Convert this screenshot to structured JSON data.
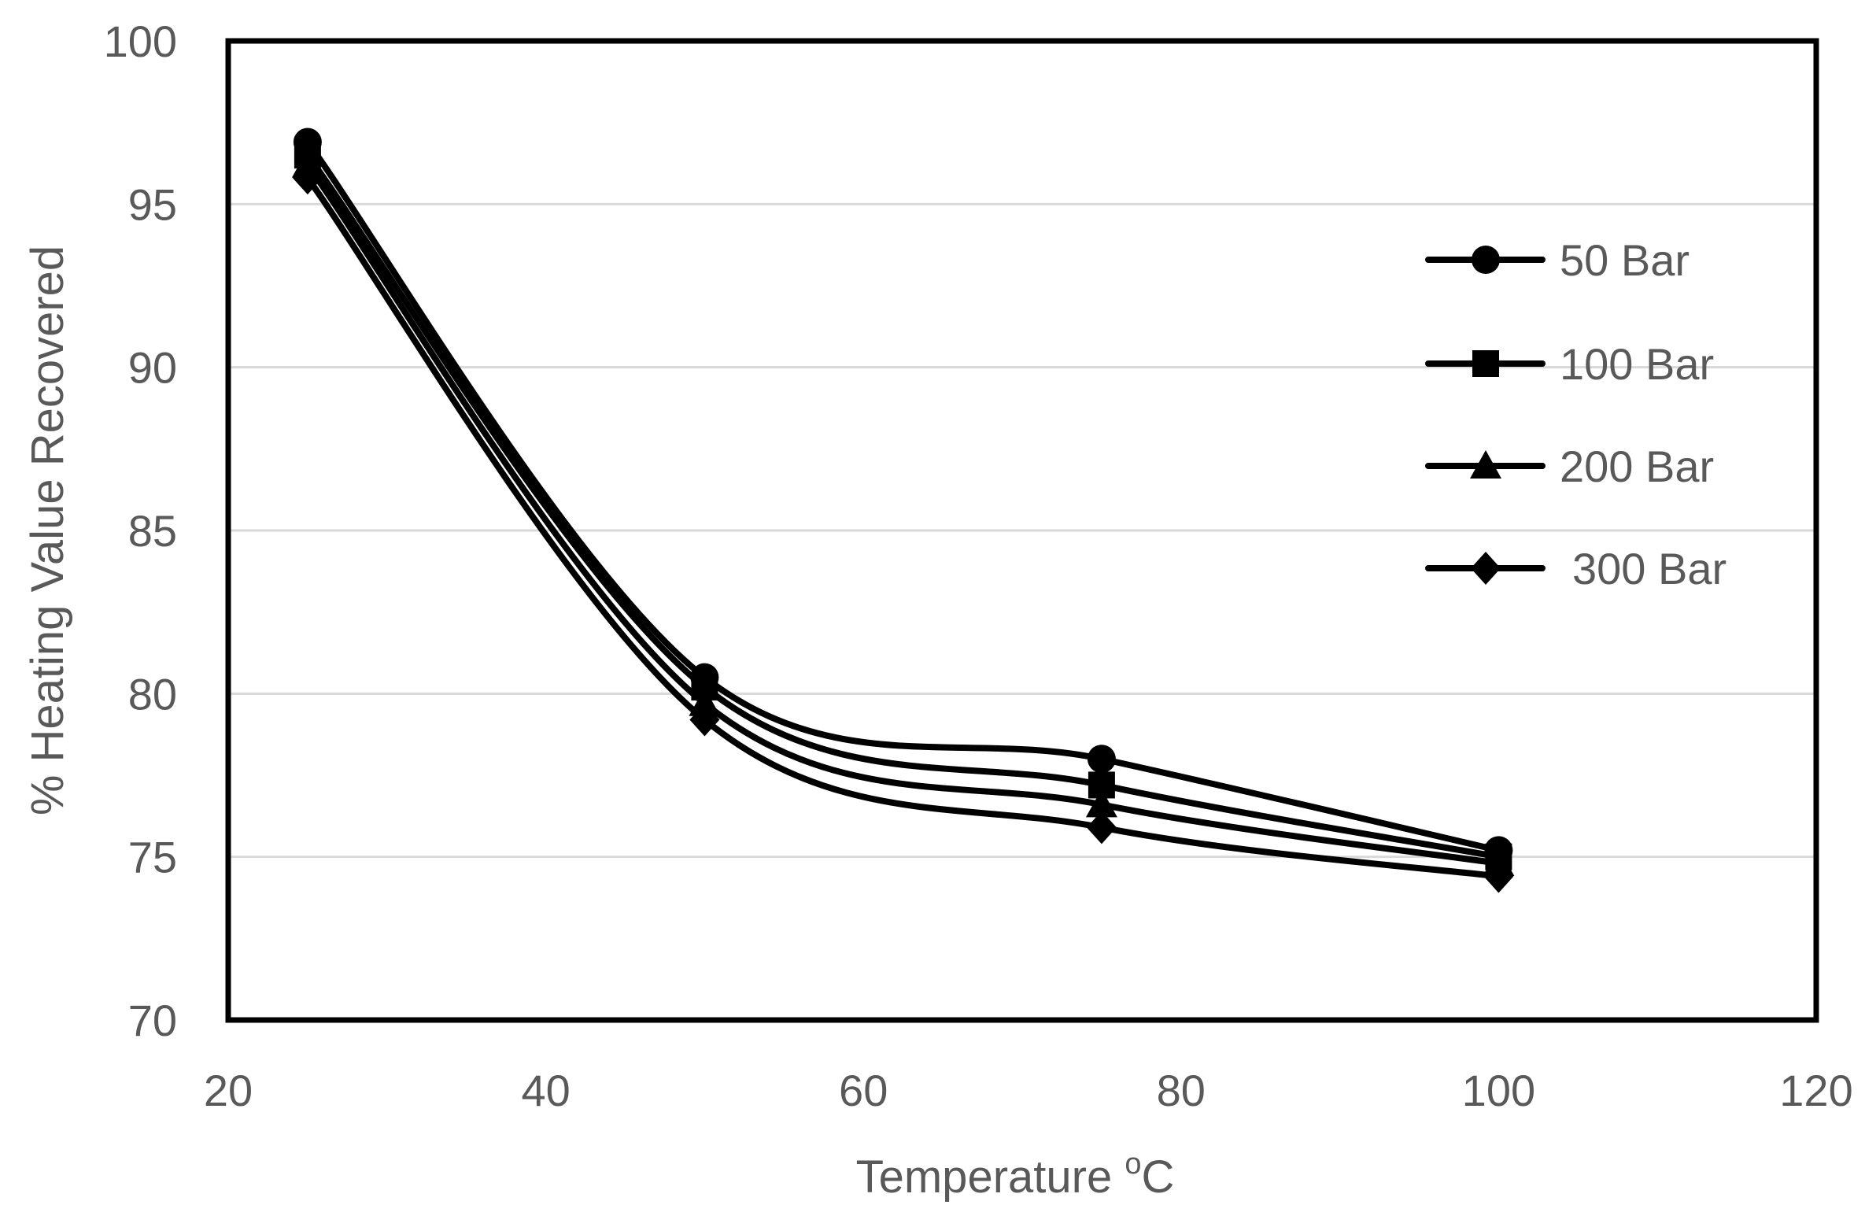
{
  "chart_data": {
    "type": "line",
    "smooth": true,
    "title": "",
    "xlabel": "Temperature",
    "xlabel_superscript": "o",
    "xlabel_unit": "C",
    "ylabel": "% Heating Value Recovered",
    "xlim": [
      20,
      120
    ],
    "ylim": [
      70,
      100
    ],
    "xticks": [
      20,
      40,
      60,
      80,
      100,
      120
    ],
    "yticks": [
      70,
      75,
      80,
      85,
      90,
      95,
      100
    ],
    "grid": "horizontal",
    "legend_position": "right",
    "x": [
      25,
      50,
      75,
      100
    ],
    "series": [
      {
        "name": "50 Bar",
        "marker": "circle",
        "values": [
          96.9,
          80.5,
          78.0,
          75.2
        ]
      },
      {
        "name": "100 Bar",
        "marker": "square",
        "values": [
          96.5,
          80.2,
          77.2,
          75.0
        ]
      },
      {
        "name": "200 Bar",
        "marker": "triangle",
        "values": [
          96.2,
          79.7,
          76.6,
          74.8
        ]
      },
      {
        "name": "300 Bar",
        "marker": "diamond",
        "values": [
          95.8,
          79.2,
          75.9,
          74.4
        ]
      }
    ]
  }
}
